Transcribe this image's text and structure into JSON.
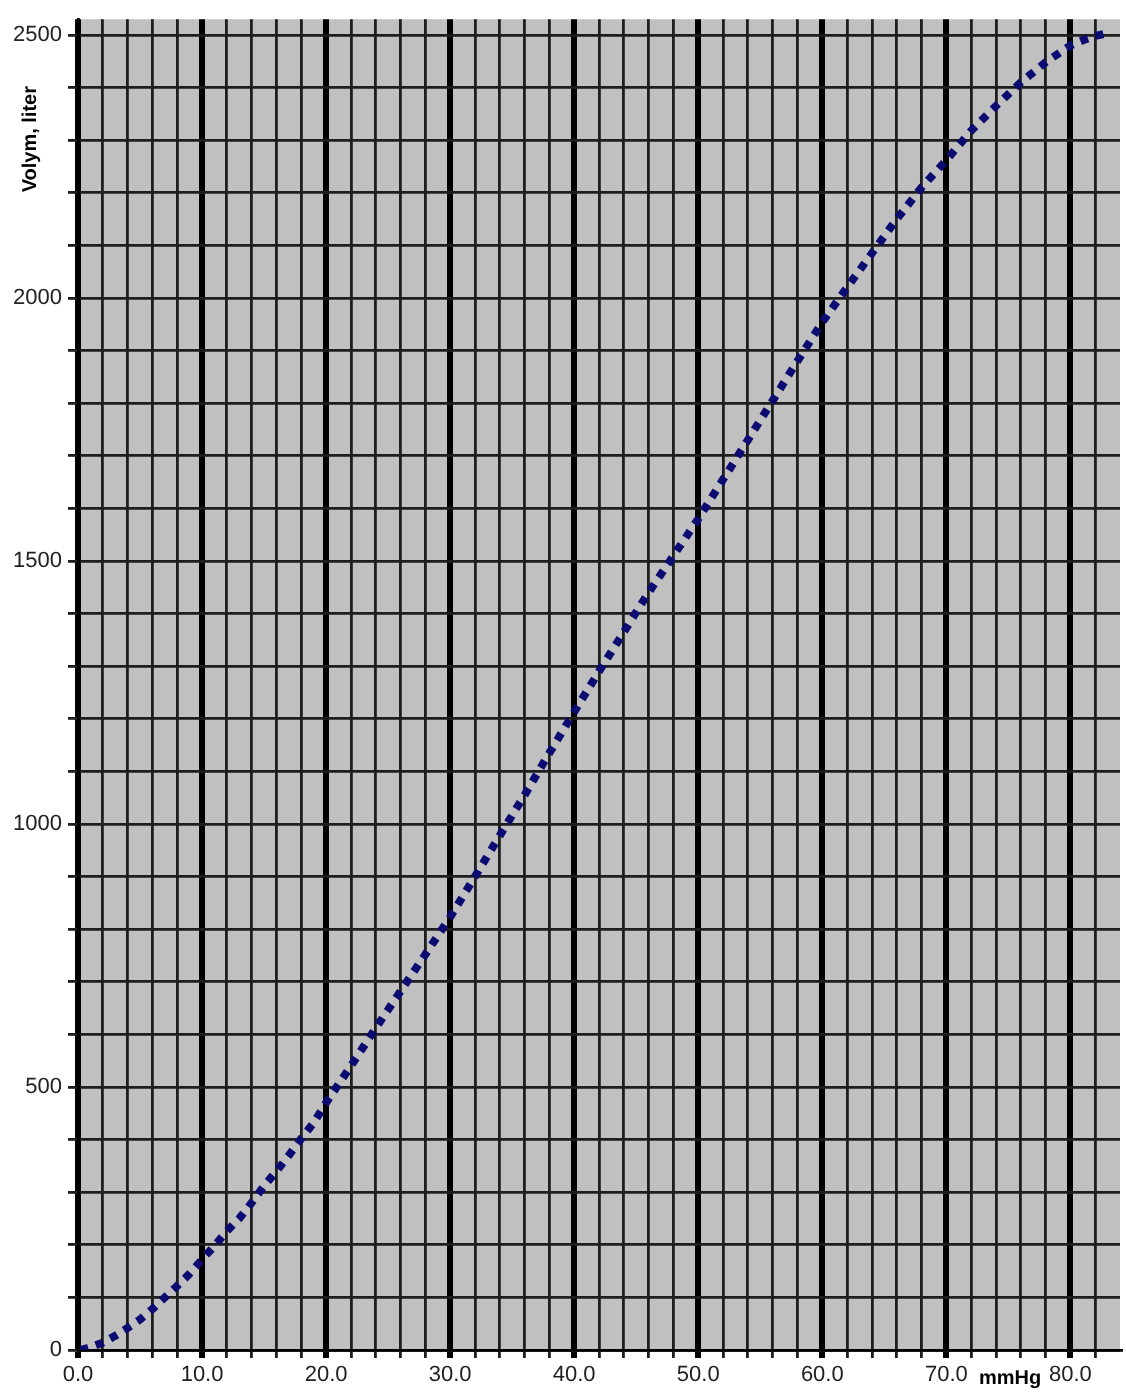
{
  "chart_data": {
    "type": "line",
    "xlabel": "mmHg",
    "ylabel": "Volym, liter",
    "x": [
      0.2,
      1,
      2,
      3,
      4,
      5,
      6,
      7,
      8,
      9,
      10,
      11,
      12,
      13,
      14,
      15,
      16,
      17,
      18,
      19,
      20,
      22,
      24,
      26,
      28,
      30,
      32,
      34,
      36,
      38,
      40,
      42,
      44,
      46,
      48,
      50,
      52,
      54,
      56,
      58,
      60,
      62,
      64,
      66,
      68,
      70,
      72,
      74,
      76,
      78,
      80,
      81,
      82,
      82.7
    ],
    "series": [
      {
        "color": "#0b0b72",
        "values": [
          0,
          5,
          14,
          27,
          42,
          58,
          78,
          100,
          122,
          145,
          172,
          198,
          226,
          250,
          280,
          312,
          340,
          370,
          402,
          432,
          470,
          540,
          612,
          682,
          752,
          823,
          900,
          978,
          1055,
          1135,
          1213,
          1290,
          1365,
          1440,
          1510,
          1580,
          1655,
          1730,
          1805,
          1880,
          1954,
          2020,
          2085,
          2150,
          2210,
          2262,
          2318,
          2365,
          2410,
          2448,
          2480,
          2490,
          2498,
          2502
        ]
      }
    ],
    "xlim": [
      0,
      84
    ],
    "ylim": [
      0,
      2530
    ],
    "xticks": [
      {
        "value": 0,
        "label": "0.0"
      },
      {
        "value": 2,
        "label": null
      },
      {
        "value": 4,
        "label": null
      },
      {
        "value": 6,
        "label": null
      },
      {
        "value": 8,
        "label": null
      },
      {
        "value": 10,
        "label": "10.0"
      },
      {
        "value": 12,
        "label": null
      },
      {
        "value": 14,
        "label": null
      },
      {
        "value": 16,
        "label": null
      },
      {
        "value": 18,
        "label": null
      },
      {
        "value": 20,
        "label": "20.0"
      },
      {
        "value": 22,
        "label": null
      },
      {
        "value": 24,
        "label": null
      },
      {
        "value": 26,
        "label": null
      },
      {
        "value": 28,
        "label": null
      },
      {
        "value": 30,
        "label": "30.0"
      },
      {
        "value": 32,
        "label": null
      },
      {
        "value": 34,
        "label": null
      },
      {
        "value": 36,
        "label": null
      },
      {
        "value": 38,
        "label": null
      },
      {
        "value": 40,
        "label": "40.0"
      },
      {
        "value": 42,
        "label": null
      },
      {
        "value": 44,
        "label": null
      },
      {
        "value": 46,
        "label": null
      },
      {
        "value": 48,
        "label": null
      },
      {
        "value": 50,
        "label": "50.0"
      },
      {
        "value": 52,
        "label": null
      },
      {
        "value": 54,
        "label": null
      },
      {
        "value": 56,
        "label": null
      },
      {
        "value": 58,
        "label": null
      },
      {
        "value": 60,
        "label": "60.0"
      },
      {
        "value": 62,
        "label": null
      },
      {
        "value": 64,
        "label": null
      },
      {
        "value": 66,
        "label": null
      },
      {
        "value": 68,
        "label": null
      },
      {
        "value": 70,
        "label": "70.0"
      },
      {
        "value": 72,
        "label": null
      },
      {
        "value": 74,
        "label": null
      },
      {
        "value": 76,
        "label": null
      },
      {
        "value": 78,
        "label": null
      },
      {
        "value": 80,
        "label": "80.0"
      },
      {
        "value": 82,
        "label": null
      }
    ],
    "yticks": [
      0,
      {
        "value": 100,
        "label": null
      },
      {
        "value": 200,
        "label": null
      },
      {
        "value": 300,
        "label": null
      },
      {
        "value": 400,
        "label": null
      },
      500,
      {
        "value": 600,
        "label": null
      },
      {
        "value": 700,
        "label": null
      },
      {
        "value": 800,
        "label": null
      },
      {
        "value": 900,
        "label": null
      },
      1000,
      {
        "value": 1100,
        "label": null
      },
      {
        "value": 1200,
        "label": null
      },
      {
        "value": 1300,
        "label": null
      },
      {
        "value": 1400,
        "label": null
      },
      1500,
      {
        "value": 1600,
        "label": null
      },
      {
        "value": 1700,
        "label": null
      },
      {
        "value": 1800,
        "label": null
      },
      {
        "value": 1900,
        "label": null
      },
      2000,
      {
        "value": 2100,
        "label": null
      },
      {
        "value": 2200,
        "label": null
      },
      {
        "value": 2300,
        "label": null
      },
      {
        "value": 2400,
        "label": null
      },
      2500
    ],
    "grid": true,
    "marker": "none",
    "line_style": "dotted"
  }
}
